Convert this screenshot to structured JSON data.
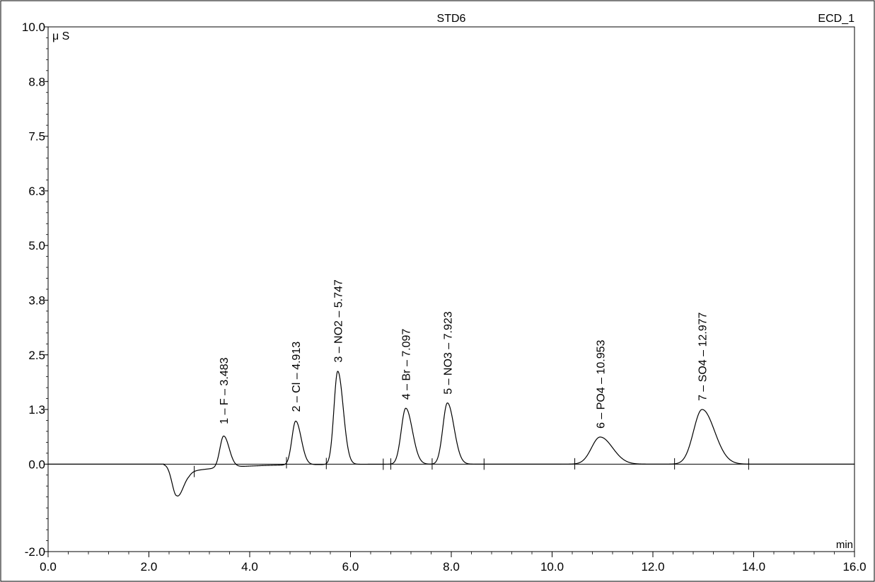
{
  "chart_data": {
    "type": "line",
    "title": "STD6",
    "channel": "ECD_1",
    "ylabel": "μ S",
    "xlabel": "min",
    "xlim": [
      0,
      16
    ],
    "ylim": [
      -2,
      10
    ],
    "x_ticks": [
      "0.0",
      "2.0",
      "4.0",
      "6.0",
      "8.0",
      "10.0",
      "12.0",
      "14.0",
      "16.0"
    ],
    "y_ticks": [
      "-2.0",
      "0.0",
      "1.3",
      "2.5",
      "3.8",
      "5.0",
      "6.3",
      "7.5",
      "8.8",
      "10.0"
    ],
    "y_tick_values": [
      -2.0,
      0.0,
      1.25,
      2.5,
      3.75,
      5.0,
      6.25,
      7.5,
      8.75,
      10.0
    ],
    "dip": {
      "x": 2.55,
      "y": -0.72
    },
    "peaks": [
      {
        "label": "1 – F – 3.483",
        "x": 3.483,
        "y": 0.72
      },
      {
        "label": "2 – Cl – 4.913",
        "x": 4.913,
        "y": 1.0
      },
      {
        "label": "3 – NO2 – 5.747",
        "x": 5.747,
        "y": 2.13
      },
      {
        "label": "4 – Br – 7.097",
        "x": 7.097,
        "y": 1.28
      },
      {
        "label": "5 – NO3 – 7.923",
        "x": 7.923,
        "y": 1.4
      },
      {
        "label": "6 – PO4 – 10.953",
        "x": 10.953,
        "y": 0.62
      },
      {
        "label": "7 – SO4 – 12.977",
        "x": 12.977,
        "y": 1.25
      }
    ],
    "integration_marks": [
      2.9,
      4.73,
      5.52,
      6.65,
      6.8,
      7.62,
      8.65,
      10.45,
      12.43,
      13.9
    ]
  }
}
